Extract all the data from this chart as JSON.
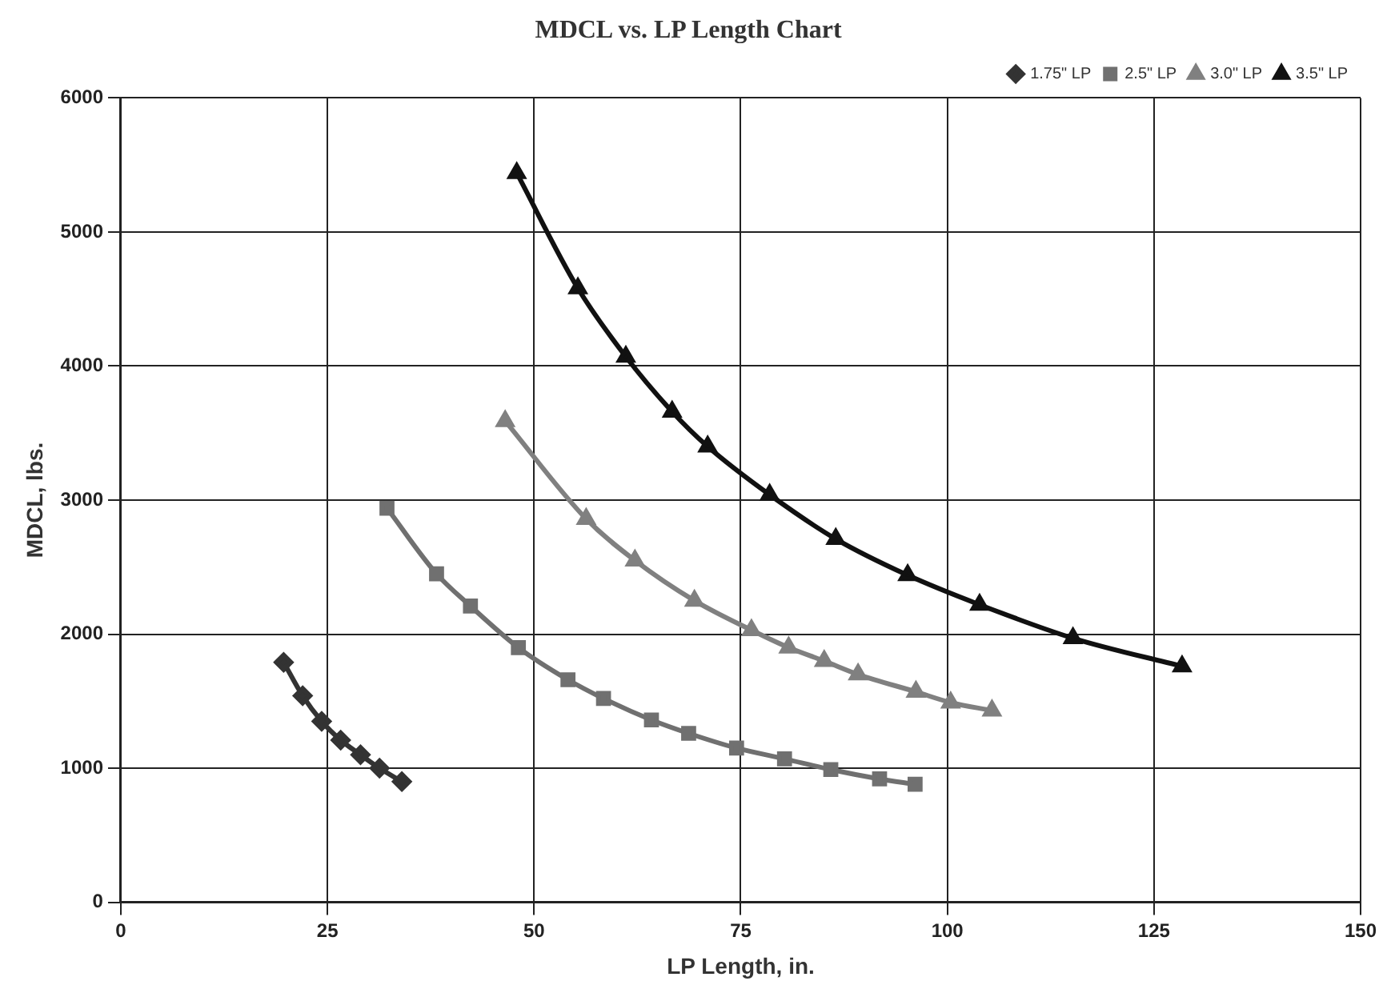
{
  "chart_data": {
    "type": "line",
    "title": "MDCL vs. LP Length Chart",
    "xlabel": "LP Length, in.",
    "ylabel": "MDCL, lbs.",
    "xlim": [
      0,
      150
    ],
    "xticks": [
      0,
      25,
      50,
      75,
      100,
      125,
      150
    ],
    "ylim": [
      0,
      6000
    ],
    "yticks": [
      0,
      1000,
      2000,
      3000,
      4000,
      5000,
      6000
    ],
    "grid": true,
    "legend": "top right",
    "line_style": "solid",
    "series": [
      {
        "name": "1.75\" LP",
        "color": "#333333",
        "marker": "diamond",
        "x": [
          19.7,
          22.0,
          24.3,
          26.6,
          29.0,
          31.3,
          34.0
        ],
        "values": [
          1790,
          1540,
          1350,
          1210,
          1100,
          1000,
          900
        ]
      },
      {
        "name": "2.5\" LP",
        "color": "#707070",
        "marker": "square",
        "x": [
          32.2,
          38.2,
          42.3,
          48.1,
          54.1,
          58.4,
          64.2,
          68.7,
          74.5,
          80.3,
          85.9,
          91.8,
          96.1
        ],
        "values": [
          2940,
          2450,
          2210,
          1900,
          1660,
          1520,
          1360,
          1260,
          1150,
          1070,
          990,
          920,
          880
        ]
      },
      {
        "name": "3.0\" LP",
        "color": "#808080",
        "marker": "triangle",
        "x": [
          46.5,
          56.3,
          62.2,
          69.4,
          76.3,
          80.8,
          85.1,
          89.2,
          96.2,
          100.4,
          105.4
        ],
        "values": [
          3590,
          2860,
          2550,
          2250,
          2030,
          1900,
          1800,
          1700,
          1570,
          1490,
          1430
        ]
      },
      {
        "name": "3.5\" LP",
        "color": "#111111",
        "marker": "triangle",
        "x": [
          47.9,
          55.3,
          61.1,
          66.7,
          71.0,
          78.5,
          86.5,
          95.2,
          103.9,
          115.2,
          128.4
        ],
        "values": [
          5440,
          4580,
          4070,
          3660,
          3400,
          3040,
          2710,
          2440,
          2220,
          1970,
          1760
        ]
      }
    ]
  }
}
